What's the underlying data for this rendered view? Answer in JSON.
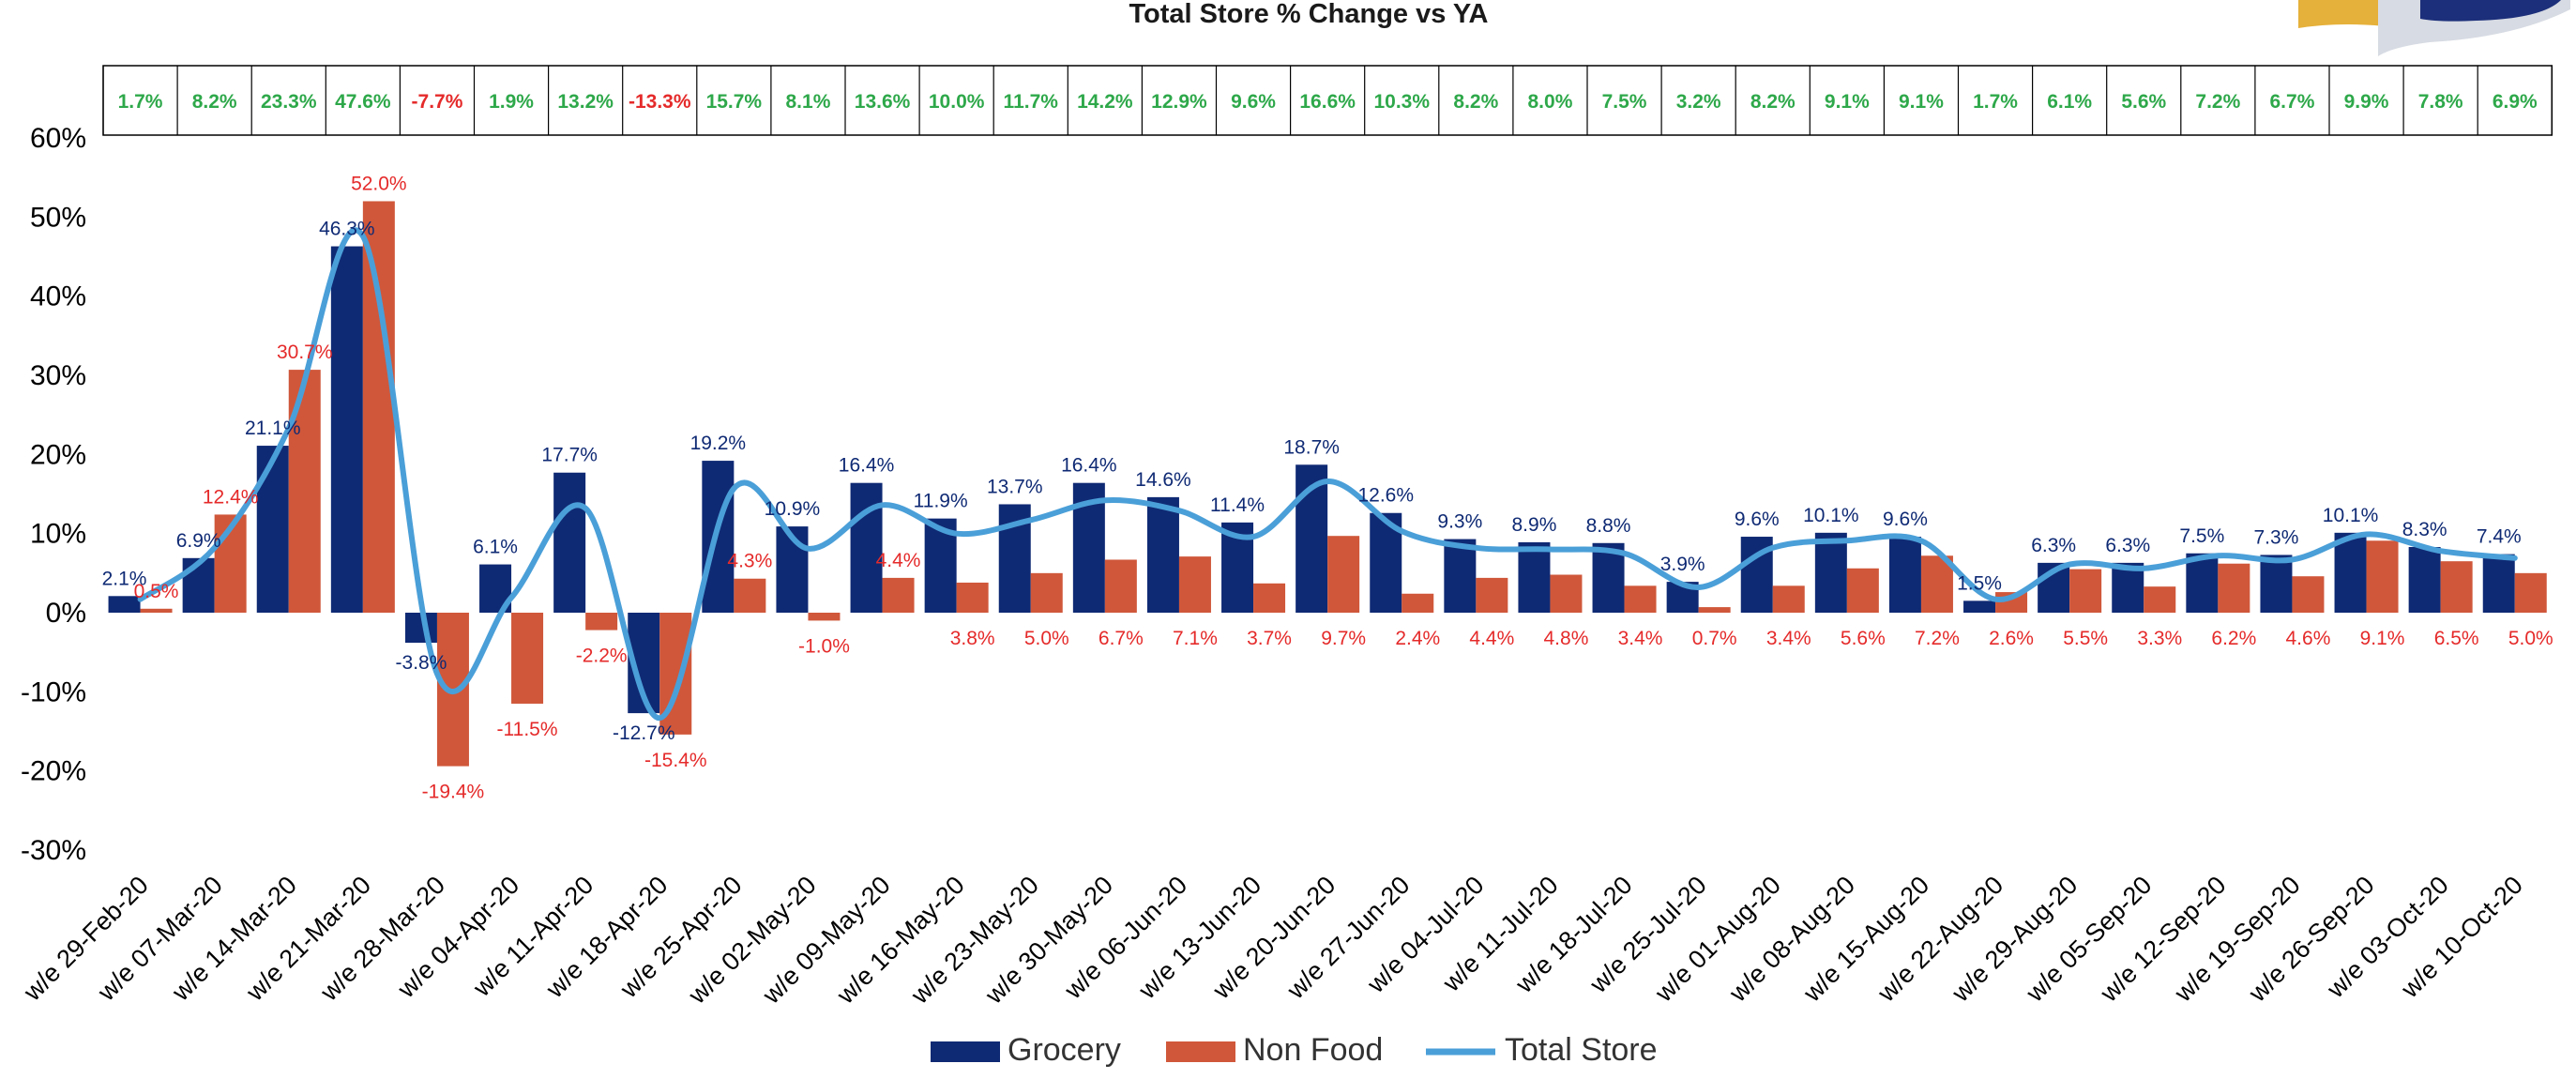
{
  "colors": {
    "grocery": "#0f2a74",
    "non_food": "#d0573a",
    "total_store": "#4a9fd8",
    "positive_text": "#2ea84a",
    "negative_text": "#e52a2a",
    "grocery_label": "#0f2a74",
    "non_food_label": "#e52a2a"
  },
  "logo": {
    "icon": "brand-logo-icon"
  },
  "chart_data": {
    "type": "bar",
    "title": "Total Store % Change vs YA",
    "categories": [
      "w/e 29-Feb-20",
      "w/e 07-Mar-20",
      "w/e 14-Mar-20",
      "w/e 21-Mar-20",
      "w/e 28-Mar-20",
      "w/e 04-Apr-20",
      "w/e 11-Apr-20",
      "w/e 18-Apr-20",
      "w/e 25-Apr-20",
      "w/e 02-May-20",
      "w/e 09-May-20",
      "w/e 16-May-20",
      "w/e 23-May-20",
      "w/e 30-May-20",
      "w/e 06-Jun-20",
      "w/e 13-Jun-20",
      "w/e 20-Jun-20",
      "w/e 27-Jun-20",
      "w/e 04-Jul-20",
      "w/e 11-Jul-20",
      "w/e 18-Jul-20",
      "w/e 25-Jul-20",
      "w/e 01-Aug-20",
      "w/e 08-Aug-20",
      "w/e 15-Aug-20",
      "w/e 22-Aug-20",
      "w/e 29-Aug-20",
      "w/e 05-Sep-20",
      "w/e 12-Sep-20",
      "w/e 19-Sep-20",
      "w/e 26-Sep-20",
      "w/e 03-Oct-20",
      "w/e 10-Oct-20"
    ],
    "series": [
      {
        "name": "Grocery",
        "kind": "bar",
        "values": [
          2.1,
          6.9,
          21.1,
          46.3,
          -3.8,
          6.1,
          17.7,
          -12.7,
          19.2,
          10.9,
          16.4,
          11.9,
          13.7,
          16.4,
          14.6,
          11.4,
          18.7,
          12.6,
          9.3,
          8.9,
          8.8,
          3.9,
          9.6,
          10.1,
          9.6,
          1.5,
          6.3,
          6.3,
          7.5,
          7.3,
          10.1,
          8.3,
          7.4
        ],
        "labels": [
          "2.1%",
          "6.9%",
          "21.1%",
          "46.3%",
          "-3.8%",
          "6.1%",
          "17.7%",
          "-12.7%",
          "19.2%",
          "10.9%",
          "16.4%",
          "11.9%",
          "13.7%",
          "16.4%",
          "14.6%",
          "11.4%",
          "18.7%",
          "12.6%",
          "9.3%",
          "8.9%",
          "8.8%",
          "3.9%",
          "9.6%",
          "10.1%",
          "9.6%",
          "1.5%",
          "6.3%",
          "6.3%",
          "7.5%",
          "7.3%",
          "10.1%",
          "8.3%",
          "7.4%"
        ]
      },
      {
        "name": "Non Food",
        "kind": "bar",
        "values": [
          0.5,
          12.4,
          30.7,
          52.0,
          -19.4,
          -11.5,
          -2.2,
          -15.4,
          4.3,
          -1.0,
          4.4,
          3.8,
          5.0,
          6.7,
          7.1,
          3.7,
          9.7,
          2.4,
          4.4,
          4.8,
          3.4,
          0.7,
          3.4,
          5.6,
          7.2,
          2.6,
          5.5,
          3.3,
          6.2,
          4.6,
          9.1,
          6.5,
          5.0
        ],
        "labels": [
          "0.5%",
          "12.4%",
          "30.7%",
          "52.0%",
          "-19.4%",
          "-11.5%",
          "-2.2%",
          "-15.4%",
          "4.3%",
          "-1.0%",
          "4.4%",
          "3.8%",
          "5.0%",
          "6.7%",
          "7.1%",
          "3.7%",
          "9.7%",
          "2.4%",
          "4.4%",
          "4.8%",
          "3.4%",
          "0.7%",
          "3.4%",
          "5.6%",
          "7.2%",
          "2.6%",
          "5.5%",
          "3.3%",
          "6.2%",
          "4.6%",
          "9.1%",
          "6.5%",
          "5.0%"
        ]
      },
      {
        "name": "Total Store",
        "kind": "line",
        "values": [
          1.7,
          8.2,
          23.3,
          47.6,
          -7.7,
          1.9,
          13.2,
          -13.3,
          15.7,
          8.1,
          13.6,
          10.0,
          11.7,
          14.2,
          12.9,
          9.6,
          16.6,
          10.3,
          8.2,
          8.0,
          7.5,
          3.2,
          8.2,
          9.1,
          9.1,
          1.7,
          6.1,
          5.6,
          7.2,
          6.7,
          9.9,
          7.8,
          6.9
        ],
        "labels": [
          "1.7%",
          "8.2%",
          "23.3%",
          "47.6%",
          "-7.7%",
          "1.9%",
          "13.2%",
          "-13.3%",
          "15.7%",
          "8.1%",
          "13.6%",
          "10.0%",
          "11.7%",
          "14.2%",
          "12.9%",
          "9.6%",
          "16.6%",
          "10.3%",
          "8.2%",
          "8.0%",
          "7.5%",
          "3.2%",
          "8.2%",
          "9.1%",
          "9.1%",
          "1.7%",
          "6.1%",
          "5.6%",
          "7.2%",
          "6.7%",
          "9.9%",
          "7.8%",
          "6.9%"
        ]
      }
    ],
    "y_ticks": [
      60,
      50,
      40,
      30,
      20,
      10,
      0,
      -10,
      -20,
      -30
    ],
    "y_tick_labels": [
      "60%",
      "50%",
      "40%",
      "30%",
      "20%",
      "10%",
      "0%",
      "-10%",
      "-20%",
      "-30%"
    ],
    "ylim": [
      -30,
      60
    ],
    "grid": false,
    "legend": {
      "position": "bottom",
      "entries": [
        "Grocery",
        "Non Food",
        "Total Store"
      ]
    },
    "table_row": {
      "position": "top",
      "series": "Total Store"
    }
  }
}
